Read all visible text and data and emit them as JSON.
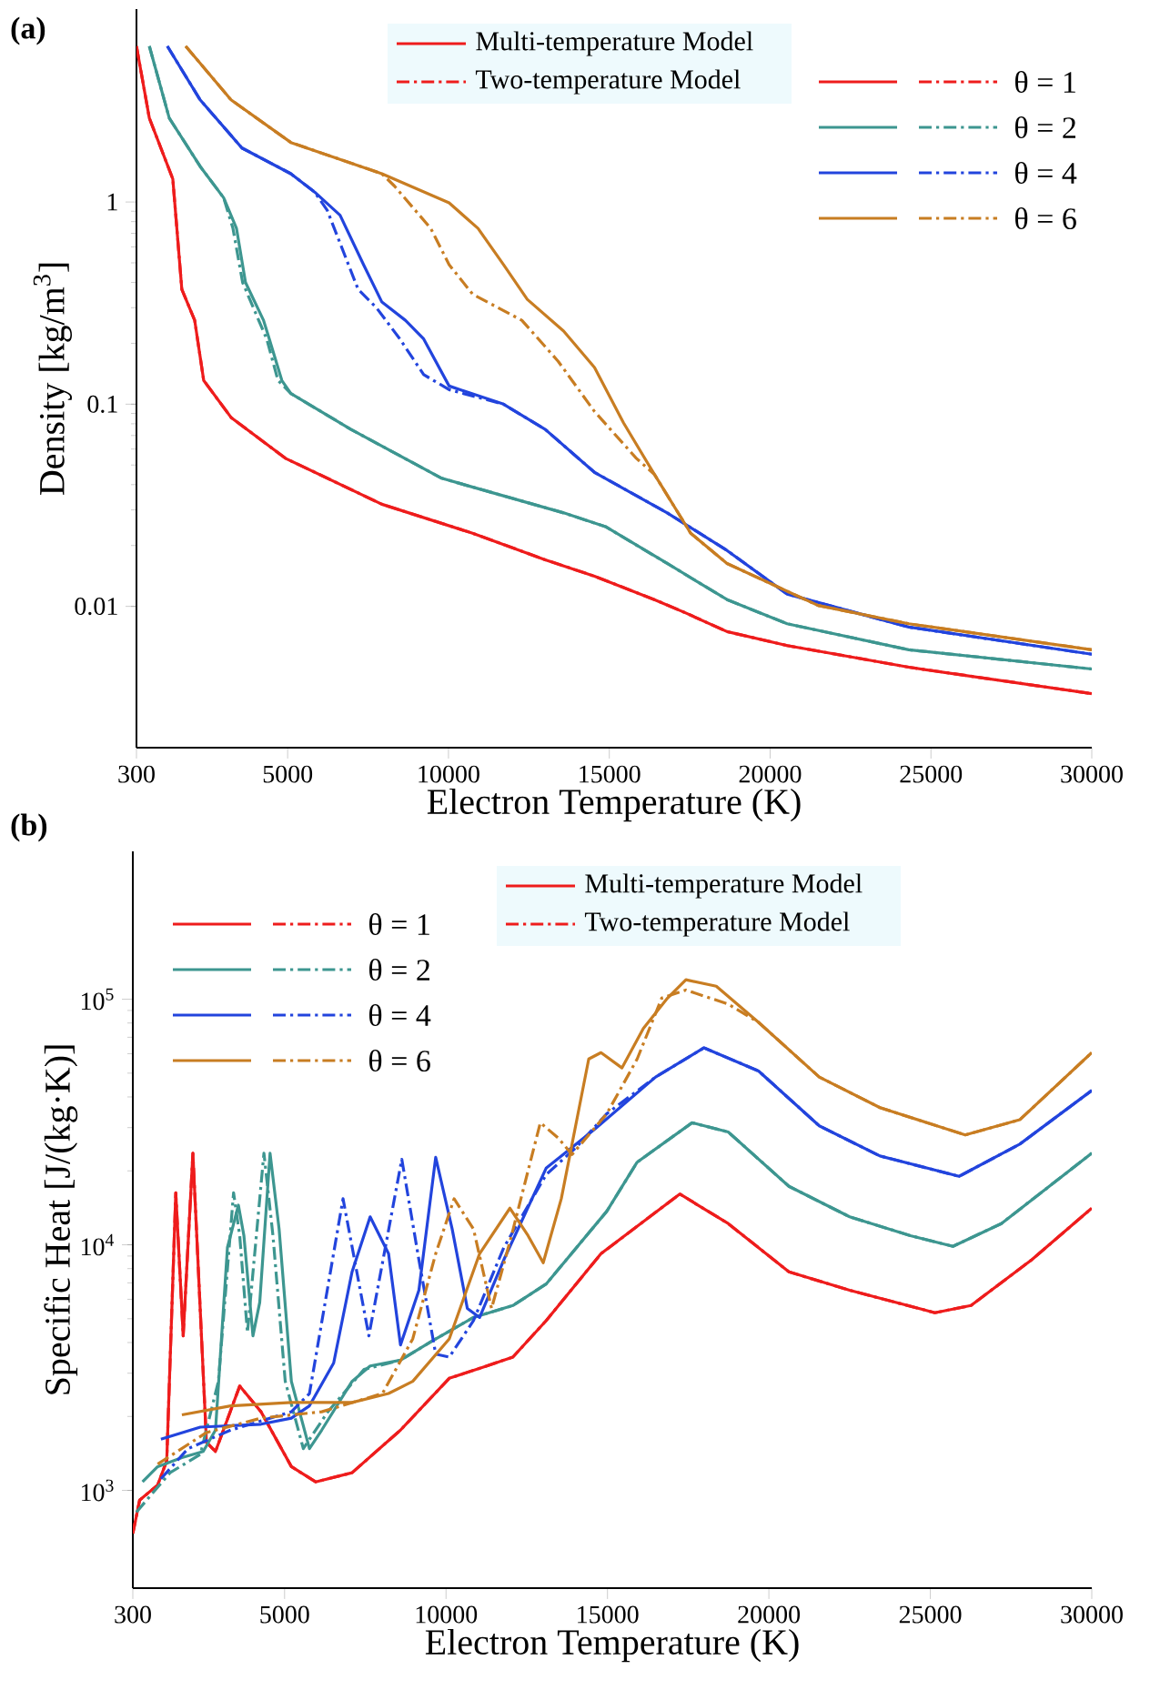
{
  "chart_data": [
    {
      "type": "line",
      "title": "(a)",
      "xlabel": "Electron Temperature  (K)",
      "ylabel": "Density  [kg/m$^{3}$]",
      "log": true,
      "legend": "top right",
      "xlim": [
        300,
        30000
      ],
      "xticks": [
        300,
        5000,
        10000,
        15000,
        20000,
        25000,
        30000
      ],
      "ylim": [
        0.002,
        9
      ],
      "yticks": [
        0.01,
        0.1,
        1
      ],
      "annotations": [
        "Multi-temperature Model",
        "Two-temperature Model"
      ],
      "series": [
        {
          "name": "θ = 1",
          "color": "#ee1c1c",
          "line_style": "solid",
          "x": [
            300,
            700,
            1430,
            1710,
            2110,
            2390,
            3240,
            4930,
            7930,
            10750,
            13010,
            14540,
            16400,
            17360,
            18660,
            20530,
            24310,
            30000
          ],
          "values": [
            5.9,
            2.6,
            1.3,
            0.37,
            0.26,
            0.131,
            0.086,
            0.054,
            0.032,
            0.023,
            0.017,
            0.0141,
            0.0108,
            0.0093,
            0.0075,
            0.0064,
            0.005,
            0.0037
          ]
        },
        {
          "color": "#ee1c1c",
          "line_style": "dashdot",
          "x": [
            300,
            700,
            1430,
            1710,
            2110,
            2390,
            3240,
            4930,
            7930,
            10750,
            13010,
            14540,
            16400,
            17360,
            18660,
            20530,
            24310,
            30000
          ],
          "values": [
            5.9,
            2.6,
            1.3,
            0.37,
            0.26,
            0.131,
            0.086,
            0.054,
            0.032,
            0.023,
            0.017,
            0.0141,
            0.0108,
            0.0093,
            0.0075,
            0.0064,
            0.005,
            0.0037
          ]
        },
        {
          "name": "θ = 2",
          "color": "#3d9690",
          "line_style": "solid",
          "x": [
            700,
            1320,
            2280,
            3010,
            3410,
            3690,
            4250,
            4430,
            4820,
            5100,
            6970,
            9790,
            13580,
            14880,
            16800,
            18660,
            20530,
            24310,
            30000
          ],
          "values": [
            5.9,
            2.6,
            1.5,
            1.05,
            0.74,
            0.4,
            0.26,
            0.21,
            0.131,
            0.113,
            0.075,
            0.043,
            0.029,
            0.0248,
            0.0163,
            0.0108,
            0.0082,
            0.0061,
            0.0049
          ]
        },
        {
          "color": "#3d9690",
          "line_style": "dashdot",
          "x": [
            700,
            1320,
            2280,
            3010,
            3300,
            3600,
            4100,
            4350,
            4700,
            5100,
            6970,
            9790,
            13580,
            14880,
            16800,
            18660,
            20530,
            24310,
            30000
          ],
          "values": [
            5.9,
            2.6,
            1.5,
            1.05,
            0.74,
            0.4,
            0.26,
            0.21,
            0.131,
            0.113,
            0.075,
            0.043,
            0.029,
            0.0248,
            0.0163,
            0.0108,
            0.0082,
            0.0061,
            0.0049
          ]
        },
        {
          "name": "θ = 4",
          "color": "#2244dd",
          "line_style": "solid",
          "x": [
            1260,
            2280,
            3580,
            5100,
            5840,
            6630,
            7360,
            7930,
            8660,
            9230,
            10020,
            11710,
            13010,
            14540,
            16800,
            18660,
            20530,
            24310,
            30000
          ],
          "values": [
            5.9,
            3.2,
            1.85,
            1.38,
            1.12,
            0.86,
            0.49,
            0.32,
            0.26,
            0.21,
            0.123,
            0.1,
            0.075,
            0.046,
            0.029,
            0.0189,
            0.0115,
            0.0079,
            0.0058
          ]
        },
        {
          "color": "#2244dd",
          "line_style": "dashdot",
          "x": [
            1260,
            2280,
            3580,
            5100,
            5840,
            6230,
            7190,
            7760,
            8490,
            9230,
            10020,
            11710,
            13010,
            14540,
            16800,
            18660,
            20530,
            24310,
            30000
          ],
          "values": [
            5.9,
            3.2,
            1.85,
            1.38,
            1.12,
            0.91,
            0.37,
            0.3,
            0.21,
            0.14,
            0.118,
            0.1,
            0.075,
            0.046,
            0.029,
            0.0189,
            0.0115,
            0.0079,
            0.0058
          ]
        },
        {
          "name": "θ = 6",
          "color": "#c87d22",
          "line_style": "solid",
          "x": [
            1830,
            3240,
            5100,
            7930,
            10020,
            10920,
            11710,
            12450,
            13580,
            14540,
            15440,
            16400,
            17530,
            18660,
            21490,
            24310,
            30000
          ],
          "values": [
            5.9,
            3.2,
            1.97,
            1.38,
            0.99,
            0.74,
            0.49,
            0.33,
            0.23,
            0.152,
            0.081,
            0.045,
            0.023,
            0.0163,
            0.0101,
            0.0082,
            0.0061
          ]
        },
        {
          "color": "#c87d22",
          "line_style": "dashdot",
          "x": [
            1830,
            3240,
            5100,
            7930,
            8320,
            9450,
            10020,
            10750,
            12280,
            13410,
            14540,
            15840,
            16400,
            17530,
            18660,
            21490,
            24310,
            30000
          ],
          "values": [
            5.9,
            3.2,
            1.97,
            1.38,
            1.2,
            0.74,
            0.49,
            0.35,
            0.26,
            0.163,
            0.092,
            0.054,
            0.045,
            0.023,
            0.0163,
            0.0101,
            0.0082,
            0.0061
          ]
        }
      ]
    },
    {
      "type": "line",
      "title": "(b)",
      "xlabel": "Electron Temperature  (K)",
      "ylabel": "Specific Heat  [J/(kg·K)]",
      "log": true,
      "legend": "top left",
      "xlim": [
        300,
        30000
      ],
      "xticks": [
        300,
        5000,
        10000,
        15000,
        20000,
        25000,
        30000
      ],
      "ylim": [
        400,
        400000
      ],
      "yticks": [
        {
          "value": 1000,
          "label": "10$^{3}$"
        },
        {
          "value": 10000,
          "label": "10$^{4}$"
        },
        {
          "value": 100000,
          "label": "10$^{5}$"
        }
      ],
      "annotations": [
        "Multi-temperature Model",
        "Two-temperature Model"
      ],
      "series": [
        {
          "name": "θ = 1",
          "color": "#ee1c1c",
          "line_style": "solid",
          "x": [
            300,
            510,
            1070,
            1350,
            1630,
            1860,
            2160,
            2580,
            2860,
            3610,
            4270,
            5210,
            5960,
            7090,
            8590,
            10100,
            11220,
            12070,
            13100,
            14800,
            17240,
            18740,
            20620,
            22500,
            25140,
            26260,
            28140,
            30000
          ],
          "values": [
            667,
            912,
            1052,
            1320,
            16300,
            4260,
            23600,
            1570,
            1440,
            2660,
            2090,
            1250,
            1083,
            1180,
            1760,
            2860,
            3200,
            3490,
            4910,
            9200,
            16100,
            12200,
            7760,
            6530,
            5290,
            5660,
            8690,
            14100
          ]
        },
        {
          "color": "#ee1c1c",
          "line_style": "dashdot",
          "x": [
            300,
            510,
            1070,
            1350,
            1630,
            1860,
            2160,
            2580,
            2860,
            3610,
            4270,
            5210,
            5960,
            7090,
            8590,
            10100,
            11220,
            12070,
            13100,
            14800,
            17240,
            18740,
            20620,
            22500,
            25140,
            26260,
            28140,
            30000
          ],
          "values": [
            667,
            912,
            1052,
            1320,
            16300,
            4260,
            23600,
            1570,
            1440,
            2660,
            2090,
            1250,
            1083,
            1180,
            1760,
            2860,
            3200,
            3490,
            4910,
            9200,
            16100,
            12200,
            7760,
            6530,
            5290,
            5660,
            8690,
            14100
          ]
        },
        {
          "name": "θ = 2",
          "color": "#3d9690",
          "line_style": "solid",
          "x": [
            600,
            1070,
            1820,
            2480,
            2860,
            3230,
            3570,
            3740,
            4020,
            4230,
            4550,
            4830,
            5210,
            5770,
            6150,
            7090,
            7650,
            8590,
            9530,
            10850,
            12070,
            13100,
            14980,
            15920,
            17620,
            18740,
            20620,
            22500,
            24380,
            25700,
            27200,
            30000
          ],
          "values": [
            1083,
            1250,
            1360,
            1440,
            1760,
            9750,
            14500,
            10900,
            4260,
            5830,
            23600,
            11600,
            2780,
            1480,
            1760,
            2780,
            3210,
            3390,
            4030,
            5060,
            5660,
            6920,
            13700,
            21700,
            31400,
            28800,
            17300,
            13000,
            10900,
            9860,
            12200,
            23600
          ]
        },
        {
          "color": "#3d9690",
          "line_style": "dashdot",
          "x": [
            410,
            1450,
            2390,
            2950,
            3420,
            3610,
            3850,
            4360,
            4640,
            5020,
            5580,
            6340,
            7460,
            8590,
            9530,
            10850,
            12070,
            13100,
            14980,
            15920,
            17620,
            18740,
            20620,
            22500,
            24380,
            25700,
            27200,
            30000
          ],
          "values": [
            815,
            1180,
            1400,
            2780,
            16300,
            10900,
            4390,
            23600,
            10900,
            2780,
            1480,
            2090,
            3110,
            3390,
            4030,
            5060,
            5660,
            6920,
            13700,
            21700,
            31400,
            28800,
            17300,
            13000,
            10900,
            9860,
            12200,
            23600
          ]
        },
        {
          "name": "θ = 4",
          "color": "#2244dd",
          "line_style": "solid",
          "x": [
            1170,
            2390,
            4270,
            5210,
            5770,
            6520,
            7090,
            7650,
            8220,
            8590,
            9160,
            9680,
            10190,
            10660,
            11040,
            11790,
            13100,
            14610,
            16490,
            17990,
            19680,
            21560,
            23440,
            25890,
            27770,
            30000
          ],
          "values": [
            1615,
            1810,
            1860,
            1970,
            2210,
            3300,
            7760,
            13000,
            9200,
            3910,
            6530,
            22700,
            11600,
            5510,
            5060,
            8690,
            20500,
            29600,
            48200,
            63400,
            51000,
            30500,
            23000,
            19000,
            25700,
            42500
          ]
        },
        {
          "color": "#2244dd",
          "line_style": "dashdot",
          "x": [
            1170,
            2010,
            3330,
            5210,
            5770,
            6810,
            7610,
            8630,
            9160,
            9680,
            10100,
            10850,
            11790,
            13100,
            14040,
            14980,
            16490,
            17990,
            19680,
            21560,
            23440,
            25890,
            27770,
            30000
          ],
          "values": [
            1115,
            1480,
            1760,
            2090,
            2480,
            15400,
            4260,
            22300,
            8690,
            3590,
            3490,
            4910,
            9750,
            19300,
            25000,
            34200,
            48200,
            63400,
            51000,
            30500,
            23000,
            19000,
            25700,
            42500
          ]
        },
        {
          "name": "θ = 6",
          "color": "#c87d22",
          "line_style": "solid",
          "x": [
            1820,
            3330,
            5210,
            7090,
            8220,
            8970,
            10100,
            11040,
            11980,
            12540,
            13010,
            13570,
            14420,
            14800,
            15450,
            16110,
            16860,
            17430,
            18370,
            19680,
            21560,
            23440,
            26080,
            27770,
            30000
          ],
          "values": [
            2030,
            2210,
            2280,
            2280,
            2480,
            2780,
            4140,
            9200,
            14100,
            10900,
            8450,
            15400,
            57100,
            60600,
            52500,
            76000,
            101000,
            120000,
            113000,
            80500,
            48200,
            36200,
            28000,
            32300,
            60600
          ]
        },
        {
          "color": "#c87d22",
          "line_style": "dashdot",
          "x": [
            1070,
            2580,
            4270,
            6150,
            8030,
            8970,
            9680,
            10250,
            10850,
            11410,
            11980,
            12920,
            13480,
            13900,
            14980,
            15920,
            16680,
            17430,
            18740,
            19680,
            21560,
            23440,
            26080,
            27770,
            30000
          ],
          "values": [
            1280,
            1720,
            1970,
            2090,
            2480,
            4140,
            9200,
            15400,
            11600,
            5510,
            10300,
            31400,
            27200,
            23300,
            34200,
            57100,
            101000,
            109000,
            95500,
            80500,
            48200,
            36200,
            28000,
            32300,
            60600
          ]
        }
      ]
    }
  ]
}
